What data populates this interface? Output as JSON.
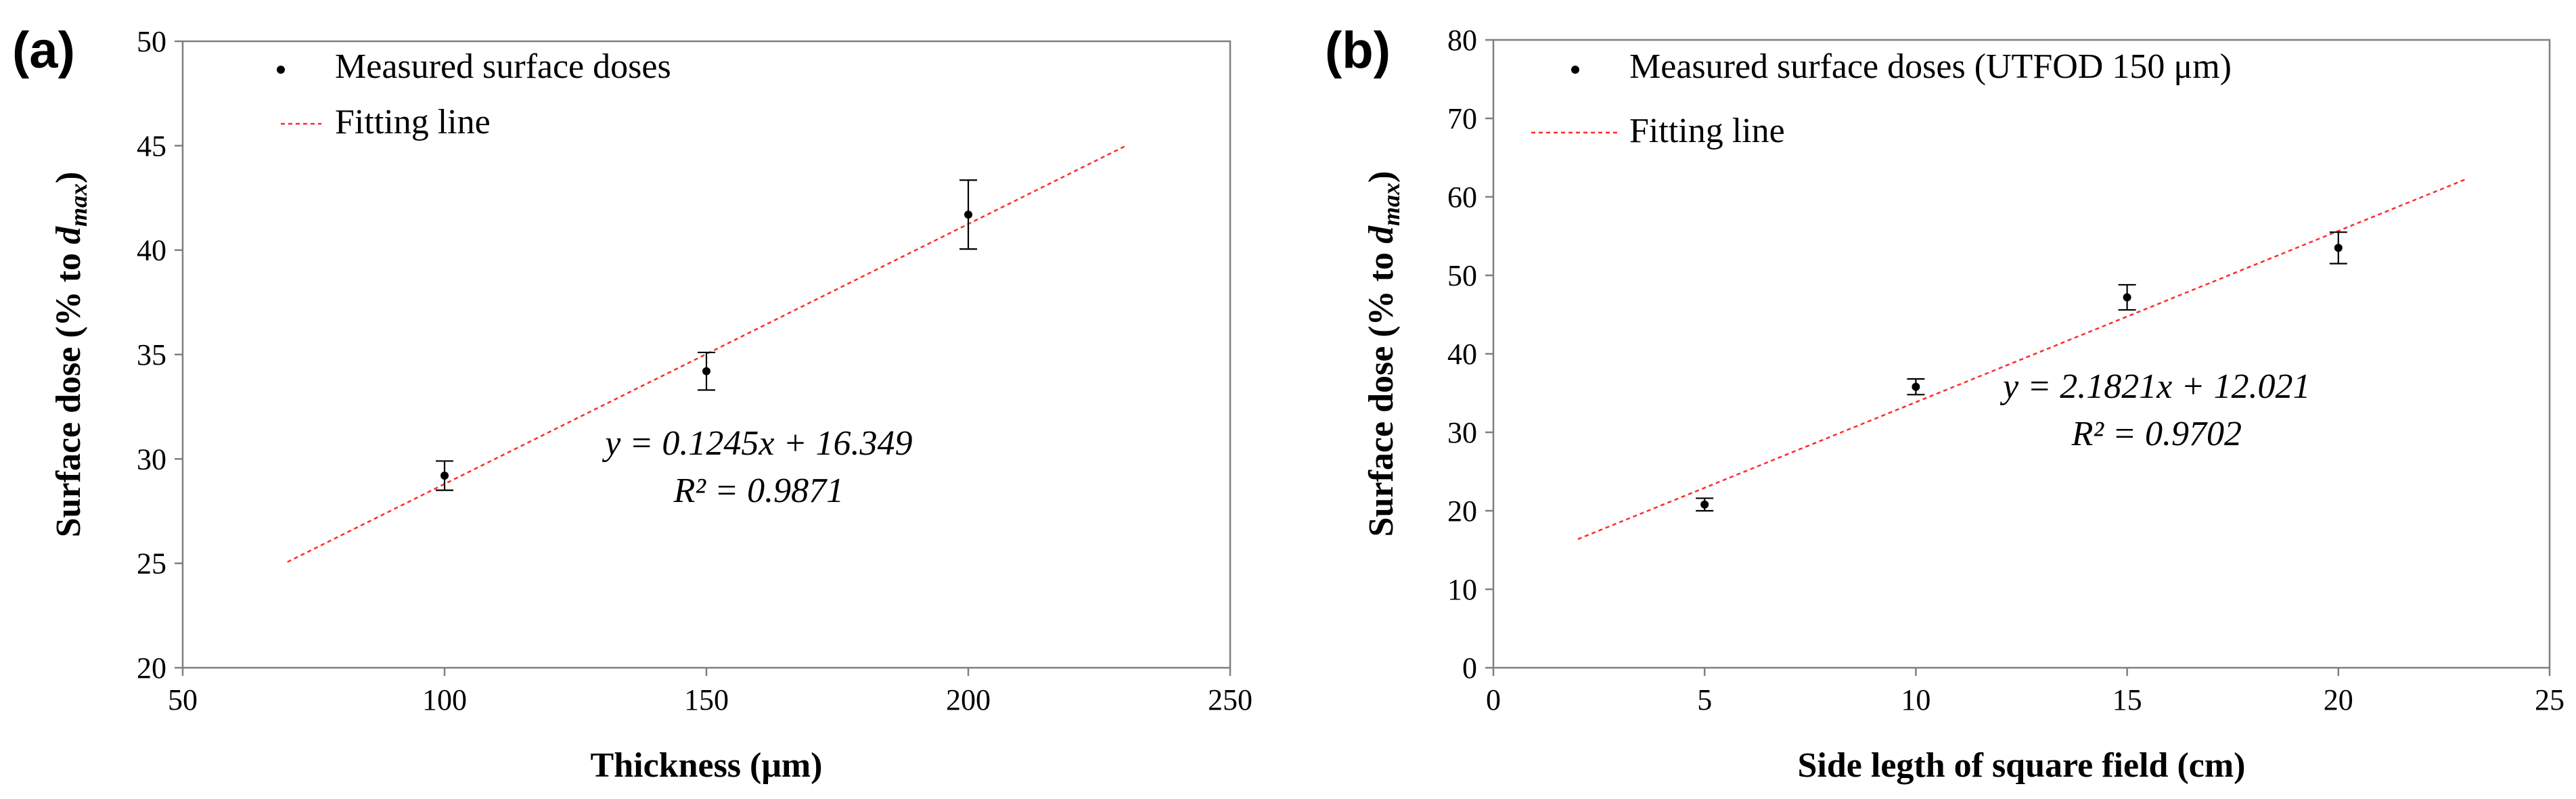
{
  "chart_data": [
    {
      "type": "scatter",
      "panel_label": "(a)",
      "title": "",
      "xlabel": "Thickness (μm)",
      "ylabel_main": "Surface dose (% to ",
      "ylabel_sub": "d",
      "ylabel_subscript": "max",
      "ylabel_end": ")",
      "xlim": [
        50,
        250
      ],
      "ylim": [
        20,
        50
      ],
      "xticks": [
        50,
        100,
        150,
        200,
        250
      ],
      "yticks": [
        20,
        25,
        30,
        35,
        40,
        45,
        50
      ],
      "series": [
        {
          "name": "Measured surface doses",
          "x": [
            100,
            150,
            200
          ],
          "y": [
            29.2,
            34.2,
            41.7
          ],
          "yerr": [
            0.7,
            0.9,
            1.65
          ]
        }
      ],
      "fit": {
        "name": "Fitting line",
        "slope": 0.1245,
        "intercept": 16.349,
        "x_range": [
          70,
          230
        ]
      },
      "equation": "y = 0.1245x + 16.349",
      "r_squared": "R² = 0.9871",
      "eq_pos": [
        160,
        30.2
      ],
      "legend": "top-left",
      "legend_rows": [
        {
          "type": "marker",
          "label": "Measured surface doses"
        },
        {
          "type": "line",
          "label": "Fitting line"
        }
      ]
    },
    {
      "type": "scatter",
      "panel_label": "(b)",
      "title": "",
      "xlabel": "Side legth of square field (cm)",
      "ylabel_main": "Surface dose (% to ",
      "ylabel_sub": "d",
      "ylabel_subscript": "max",
      "ylabel_end": ")",
      "xlim": [
        0,
        25
      ],
      "ylim": [
        0,
        80
      ],
      "xticks": [
        0,
        5,
        10,
        15,
        20,
        25
      ],
      "yticks": [
        0,
        10,
        20,
        30,
        40,
        50,
        60,
        70,
        80
      ],
      "series": [
        {
          "name": "Measured surface doses (UTFOD 150 μm)",
          "x": [
            5,
            10,
            15,
            20
          ],
          "y": [
            20.8,
            35.8,
            47.2,
            53.5
          ],
          "yerr": [
            0.8,
            1.0,
            1.6,
            2.0
          ]
        }
      ],
      "fit": {
        "name": "Fitting line",
        "slope": 2.1821,
        "intercept": 12.021,
        "x_range": [
          2,
          23
        ]
      },
      "equation": "y = 2.1821x + 12.021",
      "r_squared": "R² = 0.9702",
      "eq_pos": [
        15.7,
        34.4
      ],
      "legend": "top-left",
      "legend_rows": [
        {
          "type": "marker",
          "label": "Measured surface doses (UTFOD 150 μm)"
        },
        {
          "type": "line",
          "label": "Fitting line"
        }
      ]
    }
  ]
}
